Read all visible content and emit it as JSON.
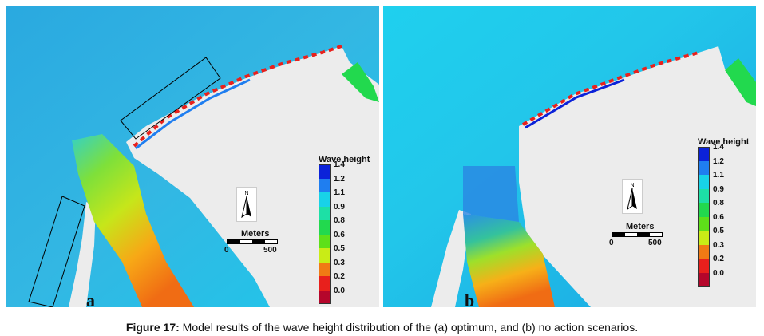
{
  "figure": {
    "caption_label": "Figure 17:",
    "caption_text": " Model results of the wave height distribution of the (a) optimum, and (b) no action scenarios."
  },
  "legend": {
    "title": "Wave height",
    "levels": [
      {
        "label": "1.4",
        "color": "#0b22d9"
      },
      {
        "label": "1.2",
        "color": "#1f7ef0"
      },
      {
        "label": "1.1",
        "color": "#18d2e8"
      },
      {
        "label": "0.9",
        "color": "#1de0a6"
      },
      {
        "label": "0.8",
        "color": "#22d94e"
      },
      {
        "label": "0.6",
        "color": "#5ee019"
      },
      {
        "label": "0.5",
        "color": "#c9ec16"
      },
      {
        "label": "0.3",
        "color": "#f07a14"
      },
      {
        "label": "0.2",
        "color": "#e8201c"
      },
      {
        "label": "0.0",
        "color": "#b5062b"
      }
    ]
  },
  "scalebar": {
    "title": "Meters",
    "min_label": "0",
    "max_label": "500"
  },
  "north_arrow": {
    "label": "N",
    "icon": "north-arrow-icon"
  },
  "panels": [
    {
      "id": "a",
      "letter": "a"
    },
    {
      "id": "b",
      "letter": "b"
    }
  ],
  "colors": {
    "land": "#ececec",
    "sea_deep": "#2fb8e6",
    "sea_shallow": "#00c6f0"
  }
}
